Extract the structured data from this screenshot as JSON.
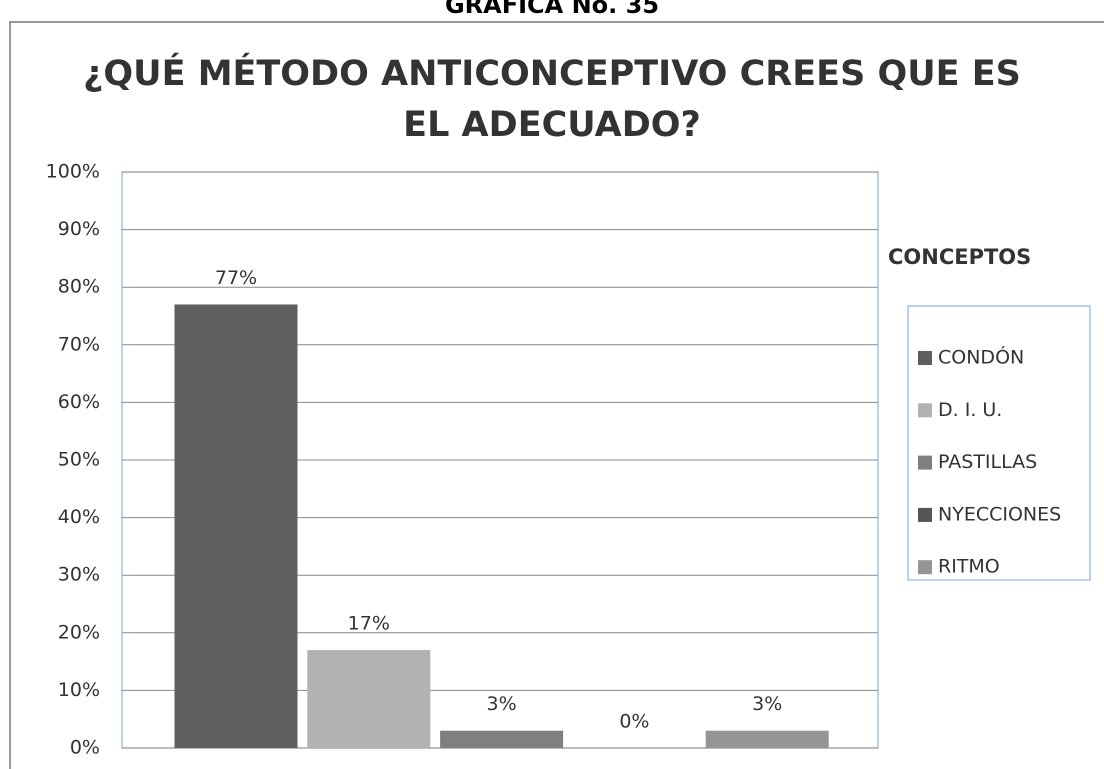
{
  "chart_data": {
    "type": "bar",
    "header": "GRAFICA No. 35",
    "title": [
      "¿QUÉ MÉTODO ANTICONCEPTIVO CREES QUE ES",
      "EL ADECUADO?"
    ],
    "legend_title": "CONCEPTOS",
    "categories": [
      "CONDÓN",
      "D. I. U.",
      "PASTILLAS",
      "NYECCIONES",
      "RITMO"
    ],
    "values": [
      77,
      17,
      3,
      0,
      3
    ],
    "value_labels": [
      "77%",
      "17%",
      "3%",
      "0%",
      "3%"
    ],
    "colors": [
      "#5f5f5f",
      "#b2b2b2",
      "#7f7f7f",
      "#555555",
      "#959595"
    ],
    "ylim": [
      0,
      100
    ],
    "yticks": [
      {
        "value": 0,
        "label": "0%"
      },
      {
        "value": 10,
        "label": "10%"
      },
      {
        "value": 20,
        "label": "20%"
      },
      {
        "value": 30,
        "label": "30%"
      },
      {
        "value": 40,
        "label": "40%"
      },
      {
        "value": 50,
        "label": "50%"
      },
      {
        "value": 60,
        "label": "60%"
      },
      {
        "value": 70,
        "label": "70%"
      },
      {
        "value": 80,
        "label": "80%"
      },
      {
        "value": 90,
        "label": "90%"
      },
      {
        "value": 100,
        "label": "100%"
      }
    ],
    "grid": true,
    "legend": "right"
  }
}
